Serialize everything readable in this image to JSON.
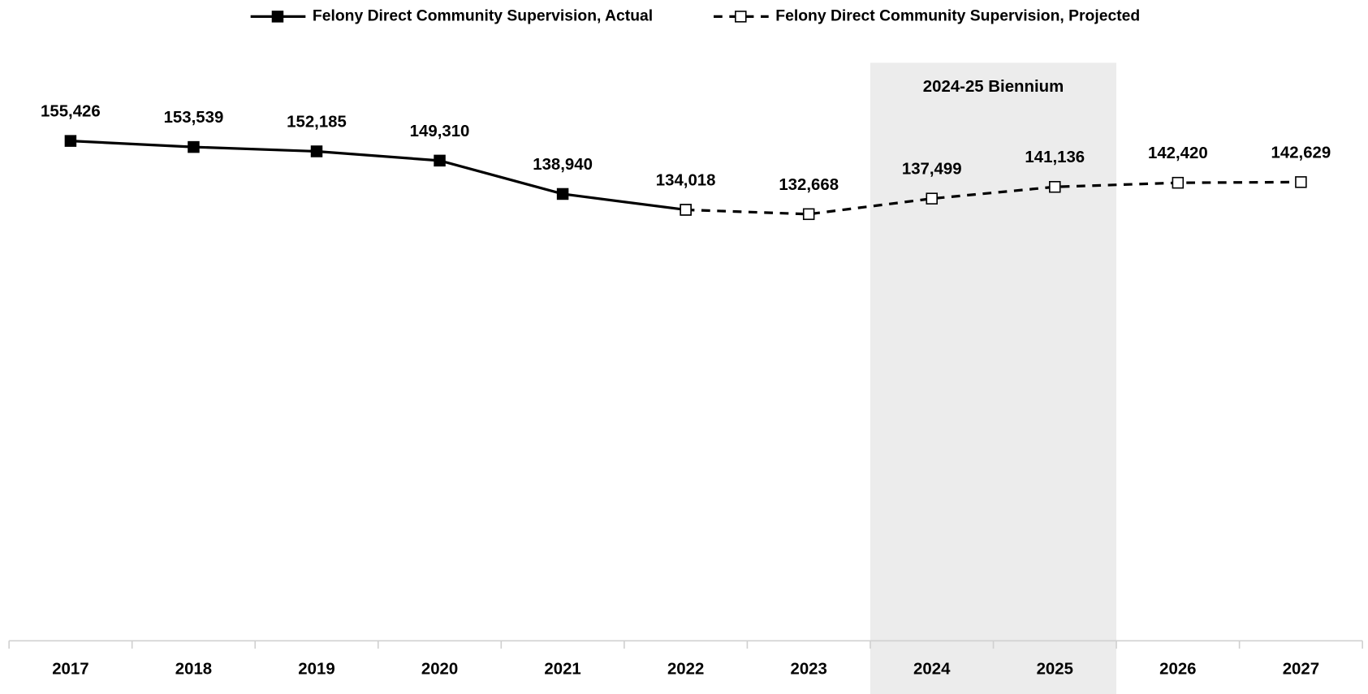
{
  "chart_data": {
    "type": "line",
    "categories": [
      "2017",
      "2018",
      "2019",
      "2020",
      "2021",
      "2022",
      "2023",
      "2024",
      "2025",
      "2026",
      "2027"
    ],
    "series": [
      {
        "name": "Felony Direct Community Supervision, Actual",
        "color": "#000000",
        "dash": false,
        "marker": "filled",
        "values": [
          155426,
          153539,
          152185,
          149310,
          138940,
          134018,
          null,
          null,
          null,
          null,
          null
        ],
        "value_labels": [
          "155,426",
          "153,539",
          "152,185",
          "149,310",
          "138,940",
          null,
          null,
          null,
          null,
          null,
          null
        ]
      },
      {
        "name": "Felony Direct Community Supervision, Projected",
        "color": "#000000",
        "dash": true,
        "marker": "open",
        "values": [
          null,
          null,
          null,
          null,
          null,
          134018,
          132668,
          137499,
          141136,
          142420,
          142629
        ],
        "value_labels": [
          null,
          null,
          null,
          null,
          null,
          "134,018",
          "132,668",
          "137,499",
          "141,136",
          "142,420",
          "142,629"
        ]
      }
    ],
    "highlight": {
      "label": "2024-25 Biennium",
      "start": "2024",
      "end": "2025"
    },
    "ylim": [
      0,
      180000
    ],
    "legend": "top"
  }
}
